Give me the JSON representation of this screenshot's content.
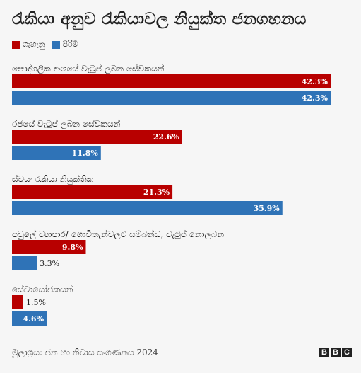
{
  "title": "රැකියා අනුව රැකියාවල නියුක්ත ජනගහනය",
  "legend": [
    {
      "label": "ගැහැනු",
      "color": "#b80000"
    },
    {
      "label": "පිරිමි",
      "color": "#2f73b7"
    }
  ],
  "chart_data": {
    "type": "bar",
    "orientation": "horizontal",
    "categories": [
      "පෞද්ගලික අංශයේ වැටුප් ලබන සේවකයන්",
      "රජයේ වැටුප් ලබන සේවකයන්",
      "ස්වයං රැකියා නියුක්තික",
      "පවුලේ ව්‍යාපාර/ ගොවිතැන්වලට සම්බන්ධ, වැටුප් නොලබන",
      "සේවායෝජකයන්"
    ],
    "series": [
      {
        "name": "ගැහැනු",
        "color": "#b80000",
        "values": [
          42.3,
          22.6,
          21.3,
          9.8,
          1.5
        ],
        "labels": [
          "42.3%",
          "22.6%",
          "21.3%",
          "9.8%",
          "1.5%"
        ]
      },
      {
        "name": "පිරිමි",
        "color": "#2f73b7",
        "values": [
          42.3,
          11.8,
          35.9,
          3.3,
          4.6
        ],
        "labels": [
          "42.3%",
          "11.8%",
          "35.9%",
          "3.3%",
          "4.6%"
        ]
      }
    ],
    "xlim": [
      0,
      42.3
    ],
    "grid": false,
    "legend_position": "top-left"
  },
  "source": "මූලාශ්‍රය: ජන හා නිවාස සංගණනය 2024",
  "logo": {
    "letters": [
      "B",
      "B",
      "C"
    ]
  }
}
